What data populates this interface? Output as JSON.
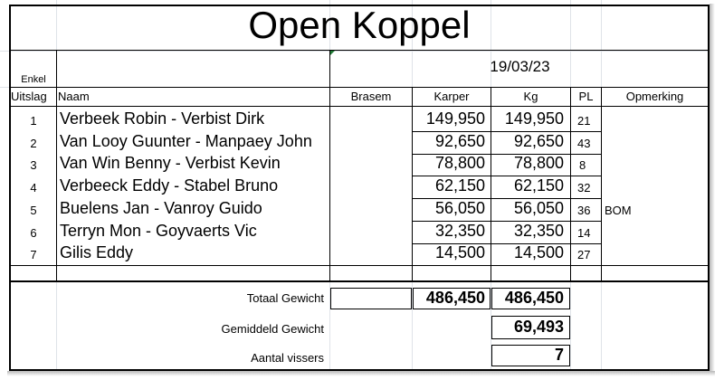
{
  "title": "Open Koppel",
  "date": "19/03/23",
  "headers": {
    "enkel": "Enkel",
    "uitslag": "Uitslag",
    "naam": "Naam",
    "brasem": "Brasem",
    "karper": "Karper",
    "kg": "Kg",
    "pl": "PL",
    "opmerking": "Opmerking"
  },
  "rows": [
    {
      "uitslag": "1",
      "naam": "Verbeek Robin - Verbist Dirk",
      "karper": "149,950",
      "kg": "149,950",
      "pl": "21",
      "opmerking": ""
    },
    {
      "uitslag": "2",
      "naam": "Van Looy Guunter - Manpaey John",
      "karper": "92,650",
      "kg": "92,650",
      "pl": "43",
      "opmerking": ""
    },
    {
      "uitslag": "3",
      "naam": "Van Win Benny - Verbist Kevin",
      "karper": "78,800",
      "kg": "78,800",
      "pl": "8",
      "opmerking": ""
    },
    {
      "uitslag": "4",
      "naam": "Verbeeck Eddy - Stabel Bruno",
      "karper": "62,150",
      "kg": "62,150",
      "pl": "32",
      "opmerking": ""
    },
    {
      "uitslag": "5",
      "naam": "Buelens Jan - Vanroy Guido",
      "karper": "56,050",
      "kg": "56,050",
      "pl": "36",
      "opmerking": "BOM"
    },
    {
      "uitslag": "6",
      "naam": "Terryn Mon - Goyvaerts Vic",
      "karper": "32,350",
      "kg": "32,350",
      "pl": "14",
      "opmerking": ""
    },
    {
      "uitslag": "7",
      "naam": "Gilis Eddy",
      "karper": "14,500",
      "kg": "14,500",
      "pl": "27",
      "opmerking": ""
    }
  ],
  "totals": {
    "totaal_label": "Totaal Gewicht",
    "totaal_karper": "486,450",
    "totaal_kg": "486,450",
    "gemiddeld_label": "Gemiddeld Gewicht",
    "gemiddeld_value": "69,493",
    "aantal_label": "Aantal vissers",
    "aantal_value": "7"
  }
}
